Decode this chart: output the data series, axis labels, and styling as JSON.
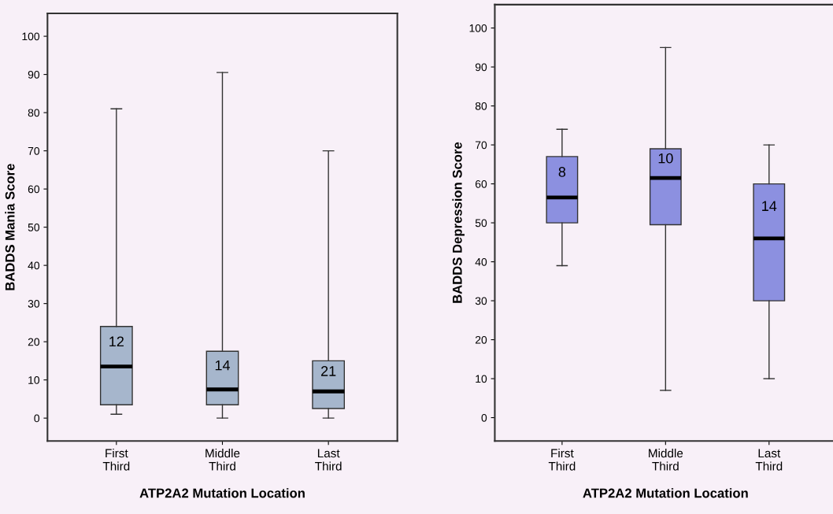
{
  "chart_data": [
    {
      "type": "box",
      "xlabel": "ATP2A2 Mutation Location",
      "ylabel": "BADDS Mania Score",
      "categories": [
        "First\nThird",
        "Middle\nThird",
        "Last\nThird"
      ],
      "color": "#a6b6cc",
      "boxes": [
        {
          "low": 1,
          "q1": 3.5,
          "median": 13.5,
          "q3": 24,
          "high": 81
        },
        {
          "low": 0,
          "q1": 3.5,
          "median": 7.5,
          "q3": 17.5,
          "high": 90.5
        },
        {
          "low": 0,
          "q1": 2.5,
          "median": 7,
          "q3": 15,
          "high": 70
        }
      ],
      "ylim": [
        -6,
        106
      ],
      "yticks": [
        0,
        10,
        20,
        30,
        40,
        50,
        60,
        70,
        80,
        90,
        100
      ],
      "grid": false,
      "annotations": [
        "12",
        "14",
        "21"
      ]
    },
    {
      "type": "box",
      "xlabel": "ATP2A2 Mutation Location",
      "ylabel": "BADDS Depression Score",
      "categories": [
        "First\nThird",
        "Middle\nThird",
        "Last\nThird"
      ],
      "color": "#8c90e0",
      "boxes": [
        {
          "low": 39,
          "q1": 50,
          "median": 56.5,
          "q3": 67,
          "high": 74
        },
        {
          "low": 7,
          "q1": 49.5,
          "median": 61.5,
          "q3": 69,
          "high": 95
        },
        {
          "low": 10,
          "q1": 30,
          "median": 46,
          "q3": 60,
          "high": 70
        }
      ],
      "ylim": [
        -6,
        106
      ],
      "yticks": [
        0,
        10,
        20,
        30,
        40,
        50,
        60,
        70,
        80,
        90,
        100
      ],
      "grid": false,
      "annotations": [
        "8",
        "10",
        "14"
      ]
    }
  ]
}
